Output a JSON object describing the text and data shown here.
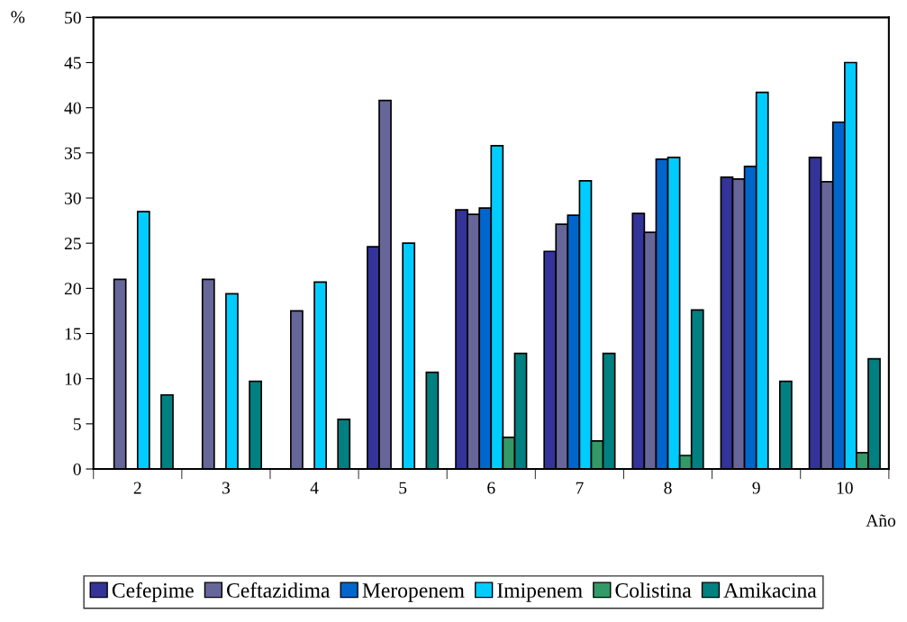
{
  "chart_data": {
    "type": "bar",
    "categories": [
      "2",
      "3",
      "4",
      "5",
      "6",
      "7",
      "8",
      "9",
      "10"
    ],
    "series": [
      {
        "name": "Cefepime",
        "color": "#333399",
        "values": [
          0,
          0,
          0,
          24.6,
          28.7,
          24.1,
          28.3,
          32.3,
          34.5
        ]
      },
      {
        "name": "Ceftazidima",
        "color": "#666699",
        "values": [
          21,
          21,
          17.5,
          40.8,
          28.2,
          27.1,
          26.2,
          32.1,
          31.8
        ]
      },
      {
        "name": "Meropenem",
        "color": "#0066cc",
        "values": [
          0,
          0,
          0,
          0,
          28.9,
          28.1,
          34.3,
          33.5,
          38.4
        ]
      },
      {
        "name": "Imipenem",
        "color": "#00ccff",
        "values": [
          28.5,
          19.4,
          20.7,
          25,
          35.8,
          31.9,
          34.5,
          41.7,
          45
        ]
      },
      {
        "name": "Colistina",
        "color": "#339966",
        "values": [
          0,
          0,
          0,
          0,
          3.5,
          3.1,
          1.5,
          0,
          1.8
        ]
      },
      {
        "name": "Amikacina",
        "color": "#008080",
        "values": [
          8.2,
          9.7,
          5.5,
          10.7,
          12.8,
          12.8,
          17.6,
          9.7,
          12.2
        ]
      }
    ],
    "xlabel": "Año",
    "ylabel": "%",
    "ylim": [
      0,
      50
    ],
    "yticks": [
      0,
      5,
      10,
      15,
      20,
      25,
      30,
      35,
      40,
      45,
      50
    ],
    "legend": "bottom"
  }
}
